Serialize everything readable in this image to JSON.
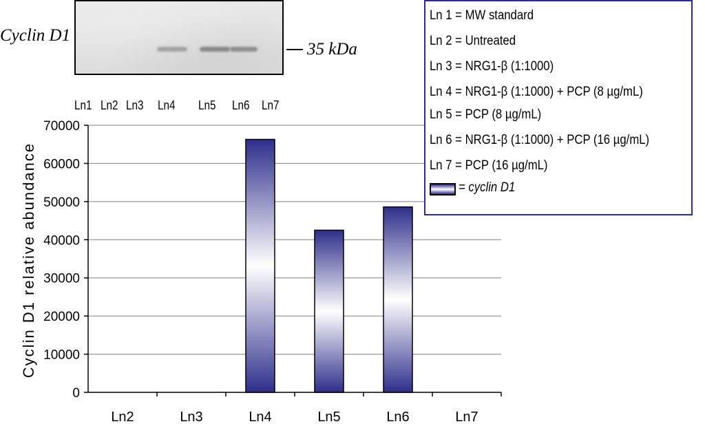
{
  "blot": {
    "protein_label": "Cyclin D1",
    "marker_label": "35 kDa",
    "lanes": [
      "Ln1",
      "Ln2",
      "Ln3",
      "Ln4",
      "Ln5",
      "Ln6",
      "Ln7"
    ]
  },
  "legend": {
    "items": [
      "Ln 1 = MW standard",
      "Ln 2 = Untreated",
      "Ln 3 = NRG1-β (1:1000)",
      "Ln 4 = NRG1-β (1:1000) + PCP (8 µg/mL)",
      "Ln 5 = PCP (8 µg/mL)",
      "Ln 6 = NRG1-β (1:1000) + PCP (16 µg/mL)",
      "Ln 7 = PCP (16 µg/mL)"
    ],
    "series_label": "= cyclin D1"
  },
  "chart_data": {
    "type": "bar",
    "title": "",
    "xlabel": "",
    "ylabel": "Cyclin D1 relative abundance",
    "categories": [
      "Ln2",
      "Ln3",
      "Ln4",
      "Ln5",
      "Ln6",
      "Ln7"
    ],
    "series": [
      {
        "name": "cyclin D1",
        "values": [
          0,
          0,
          66300,
          42500,
          48600,
          0
        ]
      }
    ],
    "ylim": [
      0,
      70000
    ],
    "yticks": [
      0,
      10000,
      20000,
      30000,
      40000,
      50000,
      60000,
      70000
    ],
    "ytick_labels": [
      "0",
      "10000",
      "20000",
      "30000",
      "40000",
      "50000",
      "60000",
      "70000"
    ],
    "grid": true,
    "legend_position": "top-right",
    "colors": {
      "bar_edge": "#2e2e8c",
      "bar_center": "#ffffff",
      "grid": "#808080",
      "legend_border": "#2b2b9b"
    }
  }
}
